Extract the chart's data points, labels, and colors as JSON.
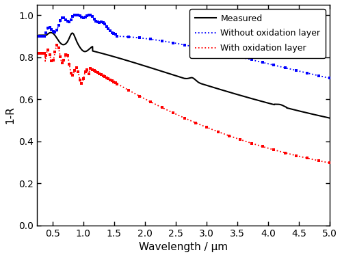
{
  "xlabel": "Wavelength / μm",
  "ylabel": "1-R",
  "xlim": [
    0.25,
    5.0
  ],
  "ylim": [
    0.0,
    1.05
  ],
  "yticks": [
    0.0,
    0.2,
    0.4,
    0.6,
    0.8,
    1.0
  ],
  "xticks": [
    0.5,
    1.0,
    1.5,
    2.0,
    2.5,
    3.0,
    3.5,
    4.0,
    4.5,
    5.0
  ],
  "legend": [
    "Measured",
    "Without oxidation layer",
    "With oxidation layer"
  ],
  "background": "#ffffff"
}
